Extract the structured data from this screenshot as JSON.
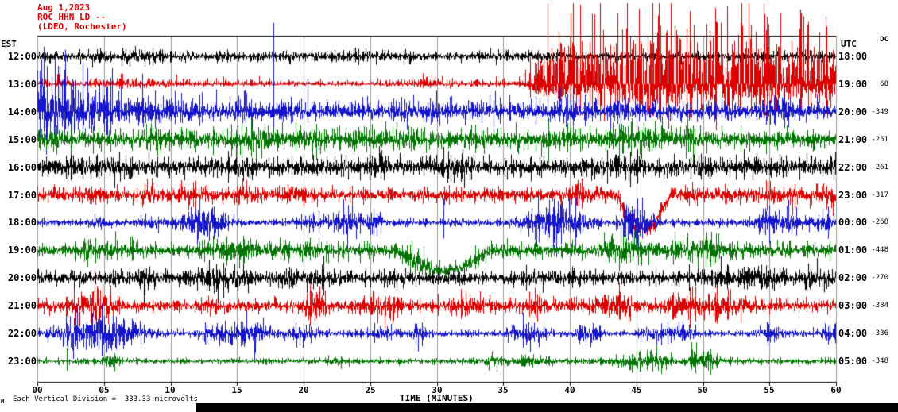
{
  "header": {
    "date": "Aug 1,2023",
    "station": "ROC HHN LD --",
    "network": "(LDEO, Rochester)"
  },
  "axes": {
    "left_label": "EST",
    "right_label": "UTC",
    "dc_label": "DC",
    "x_title": "TIME (MINUTES)",
    "x_ticks": [
      "00",
      "05",
      "10",
      "15",
      "20",
      "25",
      "30",
      "35",
      "40",
      "45",
      "50",
      "55",
      "60"
    ]
  },
  "footer": {
    "scale_note": "Each Vertical Division =  333.33 microvolts",
    "corner_mark": "M"
  },
  "colors": {
    "title": "#dd0000",
    "grid": "#9a9a9a",
    "axis": "#000000",
    "black": "#000000",
    "red": "#dd0000",
    "blue": "#1515cc",
    "green": "#007400"
  },
  "chart_data": {
    "type": "line",
    "subtype": "helicorder-seismogram",
    "title": "ROC HHN LD -- (LDEO, Rochester) Aug 1,2023",
    "xlabel": "TIME (MINUTES)",
    "x_range_minutes": [
      0,
      60
    ],
    "vertical_division_microvolts": 333.33,
    "grid": "vertical lines every 5 minutes",
    "rows": [
      {
        "est": "12:00",
        "utc": "18:00",
        "dc": null,
        "color": "black",
        "hex": "#000000",
        "seed": 101,
        "env": [
          [
            0,
            8
          ],
          [
            10,
            7
          ],
          [
            25,
            7
          ],
          [
            36,
            6
          ],
          [
            60,
            6
          ]
        ],
        "burst_rate": 6,
        "burst_amp": 4,
        "spikes": [],
        "swing": null
      },
      {
        "est": "13:00",
        "utc": "19:00",
        "dc": "68",
        "color": "red",
        "hex": "#dd0000",
        "seed": 202,
        "env": [
          [
            0,
            7
          ],
          [
            10,
            6
          ],
          [
            25,
            6
          ],
          [
            36.5,
            6
          ],
          [
            38,
            55
          ],
          [
            40,
            78
          ],
          [
            44,
            70
          ],
          [
            47,
            82
          ],
          [
            50,
            68
          ],
          [
            53,
            78
          ],
          [
            56,
            64
          ],
          [
            60,
            68
          ]
        ],
        "burst_rate": 5,
        "burst_amp": 5,
        "up_scale": 1.18,
        "down_scale": 0.5,
        "spikes": [
          [
            38.3,
            95,
            30
          ],
          [
            40.8,
            100,
            40
          ],
          [
            43.6,
            90,
            45
          ],
          [
            46.2,
            105,
            38
          ],
          [
            49.0,
            92,
            42
          ],
          [
            51.8,
            98,
            36
          ],
          [
            54.6,
            88,
            40
          ],
          [
            57.4,
            90,
            34
          ],
          [
            59.2,
            85,
            30
          ]
        ],
        "swing": null
      },
      {
        "est": "14:00",
        "utc": "20:00",
        "dc": "-349",
        "color": "blue",
        "hex": "#1515cc",
        "seed": 303,
        "env": [
          [
            0,
            52
          ],
          [
            2,
            42
          ],
          [
            4,
            32
          ],
          [
            6,
            24
          ],
          [
            9,
            19
          ],
          [
            14,
            16
          ],
          [
            20,
            15
          ],
          [
            28,
            14
          ],
          [
            34,
            13
          ],
          [
            40,
            15
          ],
          [
            47,
            13
          ],
          [
            53,
            14
          ],
          [
            60,
            12
          ]
        ],
        "burst_rate": 10,
        "burst_amp": 7,
        "up_scale": 1.1,
        "down_scale": 0.8,
        "spikes": [
          [
            0.5,
            82,
            25
          ],
          [
            1.3,
            72,
            20
          ],
          [
            2.1,
            78,
            22
          ],
          [
            3.4,
            62,
            18
          ],
          [
            5.6,
            55,
            16
          ],
          [
            7.9,
            48,
            14
          ],
          [
            17.75,
            112,
            26
          ],
          [
            20.3,
            42,
            14
          ]
        ],
        "swing": null
      },
      {
        "est": "15:00",
        "utc": "21:00",
        "dc": "-251",
        "color": "green",
        "hex": "#007400",
        "seed": 404,
        "env": [
          [
            0,
            15
          ],
          [
            8,
            13
          ],
          [
            16,
            14
          ],
          [
            24,
            13
          ],
          [
            32,
            14
          ],
          [
            40,
            14
          ],
          [
            48,
            13
          ],
          [
            60,
            13
          ]
        ],
        "burst_rate": 11,
        "burst_amp": 8,
        "spikes": [
          [
            2.5,
            30,
            25
          ]
        ],
        "swing": null
      },
      {
        "est": "16:00",
        "utc": "22:00",
        "dc": "-261",
        "color": "black",
        "hex": "#000000",
        "seed": 505,
        "env": [
          [
            0,
            12
          ],
          [
            10,
            12
          ],
          [
            20,
            13
          ],
          [
            30,
            12
          ],
          [
            40,
            13
          ],
          [
            50,
            12
          ],
          [
            60,
            12
          ]
        ],
        "burst_rate": 10,
        "burst_amp": 7,
        "spikes": [],
        "swing": null
      },
      {
        "est": "17:00",
        "utc": "23:00",
        "dc": "-317",
        "color": "red",
        "hex": "#dd0000",
        "seed": 606,
        "env": [
          [
            0,
            10
          ],
          [
            8,
            9
          ],
          [
            16,
            10
          ],
          [
            24,
            10
          ],
          [
            32,
            10
          ],
          [
            40,
            10
          ],
          [
            44,
            12
          ],
          [
            48,
            13
          ],
          [
            52,
            11
          ],
          [
            60,
            10
          ]
        ],
        "burst_rate": 9,
        "burst_amp": 8,
        "spikes": [],
        "swing": [
          43.5,
          47.5,
          44
        ]
      },
      {
        "est": "18:00",
        "utc": "00:00",
        "dc": "-268",
        "color": "blue",
        "hex": "#1515cc",
        "seed": 707,
        "env": [
          [
            0,
            5
          ],
          [
            60,
            5
          ]
        ],
        "burst_rate": 18,
        "burst_amp": 14,
        "spikes": [
          [
            30.5,
            30,
            20
          ]
        ],
        "swing": null
      },
      {
        "est": "19:00",
        "utc": "01:00",
        "dc": "-448",
        "color": "green",
        "hex": "#007400",
        "seed": 808,
        "env": [
          [
            0,
            11
          ],
          [
            10,
            10
          ],
          [
            20,
            11
          ],
          [
            30,
            11
          ],
          [
            40,
            10
          ],
          [
            50,
            11
          ],
          [
            60,
            10
          ]
        ],
        "burst_rate": 12,
        "burst_amp": 10,
        "spikes": [],
        "swing": [
          27,
          34,
          26
        ]
      },
      {
        "est": "20:00",
        "utc": "02:00",
        "dc": "-270",
        "color": "black",
        "hex": "#000000",
        "seed": 909,
        "env": [
          [
            0,
            10
          ],
          [
            12,
            9
          ],
          [
            24,
            10
          ],
          [
            36,
            9
          ],
          [
            48,
            10
          ],
          [
            60,
            9
          ]
        ],
        "burst_rate": 12,
        "burst_amp": 9,
        "spikes": [
          [
            21.5,
            28,
            22
          ]
        ],
        "swing": null
      },
      {
        "est": "21:00",
        "utc": "03:00",
        "dc": "-384",
        "color": "red",
        "hex": "#dd0000",
        "seed": 1010,
        "env": [
          [
            0,
            9
          ],
          [
            12,
            8
          ],
          [
            24,
            9
          ],
          [
            36,
            9
          ],
          [
            48,
            9
          ],
          [
            60,
            8
          ]
        ],
        "burst_rate": 13,
        "burst_amp": 12,
        "spikes": [],
        "swing": null
      },
      {
        "est": "22:00",
        "utc": "04:00",
        "dc": "-336",
        "color": "blue",
        "hex": "#1515cc",
        "seed": 1111,
        "env": [
          [
            0,
            4.5
          ],
          [
            60,
            4.5
          ]
        ],
        "burst_rate": 17,
        "burst_amp": 14,
        "spikes": [
          [
            36.5,
            26,
            18
          ]
        ],
        "swing": null
      },
      {
        "est": "23:00",
        "utc": "05:00",
        "dc": "-348",
        "color": "green",
        "hex": "#007400",
        "seed": 1212,
        "env": [
          [
            0,
            4
          ],
          [
            60,
            4
          ]
        ],
        "burst_rate": 9,
        "burst_amp": 10,
        "spikes": [
          [
            2.2,
            16,
            12
          ]
        ],
        "swing": null
      }
    ]
  }
}
